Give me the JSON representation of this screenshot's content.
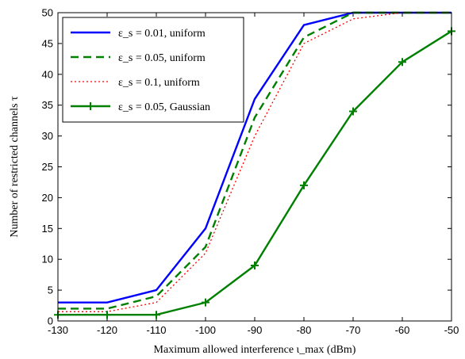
{
  "chart_data": {
    "type": "line",
    "xlabel": "Maximum allowed interference ι_max (dBm)",
    "ylabel": "Number of restricted channels τ",
    "xlim": [
      -130,
      -50
    ],
    "ylim": [
      0,
      50
    ],
    "x_ticks": [
      -130,
      -120,
      -110,
      -100,
      -90,
      -80,
      -70,
      -60,
      -50
    ],
    "y_ticks": [
      0,
      5,
      10,
      15,
      20,
      25,
      30,
      35,
      40,
      45,
      50
    ],
    "grid": false,
    "legend_position": "top-left",
    "x": [
      -130,
      -120,
      -110,
      -100,
      -90,
      -80,
      -70,
      -60,
      -50
    ],
    "series": [
      {
        "name": "ε_s = 0.01, uniform",
        "color": "#0000ff",
        "style": "solid",
        "marker": "none",
        "values": [
          3,
          3,
          5,
          15,
          36,
          48,
          50,
          50,
          50
        ]
      },
      {
        "name": "ε_s = 0.05, uniform",
        "color": "#008000",
        "style": "dashed",
        "marker": "none",
        "values": [
          2,
          2,
          4,
          12,
          33,
          46,
          50,
          50,
          50
        ]
      },
      {
        "name": "ε_s = 0.1, uniform",
        "color": "#ff0000",
        "style": "dotted",
        "marker": "none",
        "values": [
          1.5,
          1.5,
          3,
          11,
          30,
          45,
          49,
          50,
          50
        ]
      },
      {
        "name": "ε_s = 0.05, Gaussian",
        "color": "#008000",
        "style": "solid",
        "marker": "plus",
        "values": [
          1,
          1,
          1,
          3,
          9,
          22,
          34,
          42,
          47
        ]
      }
    ]
  }
}
